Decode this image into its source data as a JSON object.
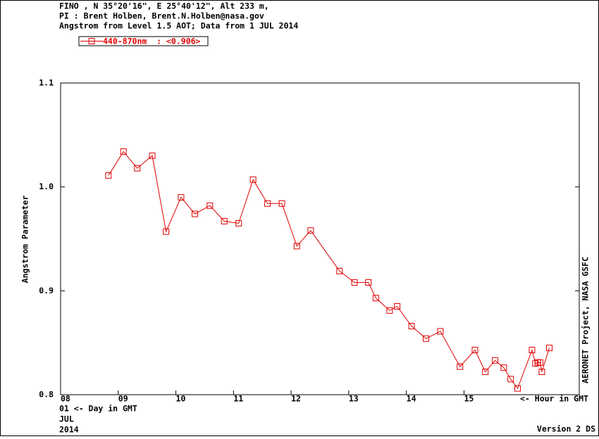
{
  "chart_data": {
    "type": "line",
    "header": [
      "FINO , N 35°20'16\", E 25°40'12\", Alt 233 m,",
      "PI : Brent Holben, Brent.N.Holben@nasa.gov",
      "Angstrom from Level 1.5 AOT; Data from 1 JUL 2014"
    ],
    "y_label": "Angstrom Parameter",
    "x_label": "<- Hour in GMT",
    "day_label": "01  <- Day in GMT",
    "month": "JUL",
    "year": "2014",
    "right_note": "AERONET Project, NASA GSFC",
    "version": "Version 2 DS",
    "xlim": [
      8,
      17
    ],
    "xticks": [
      {
        "value": 8,
        "label": "08"
      },
      {
        "value": 9,
        "label": "09"
      },
      10,
      11,
      12,
      13,
      14,
      15
    ],
    "ylim": [
      0.8,
      1.1
    ],
    "yticks": [
      0.8,
      0.9,
      {
        "value": 1,
        "label": "1.0"
      },
      1.1
    ],
    "legend": "top-left",
    "series": [
      {
        "name": "440-870nm  : <0.906>",
        "color": "#e00000",
        "x": [
          8.83,
          9.09,
          9.33,
          9.59,
          9.83,
          10.09,
          10.33,
          10.59,
          10.84,
          11.09,
          11.34,
          11.59,
          11.84,
          12.1,
          12.34,
          12.84,
          13.1,
          13.34,
          13.47,
          13.71,
          13.84,
          14.09,
          14.34,
          14.59,
          14.93,
          15.19,
          15.37,
          15.54,
          15.69,
          15.81,
          15.93,
          16.18,
          16.24,
          16.28,
          16.32,
          16.35,
          16.48
        ],
        "values": [
          1.011,
          1.034,
          1.018,
          1.03,
          0.957,
          0.99,
          0.974,
          0.982,
          0.967,
          0.965,
          1.007,
          0.984,
          0.984,
          0.943,
          0.958,
          0.919,
          0.908,
          0.908,
          0.893,
          0.881,
          0.885,
          0.866,
          0.854,
          0.861,
          0.827,
          0.843,
          0.822,
          0.833,
          0.826,
          0.815,
          0.806,
          0.843,
          0.83,
          0.831,
          0.831,
          0.822,
          0.845
        ]
      }
    ]
  }
}
